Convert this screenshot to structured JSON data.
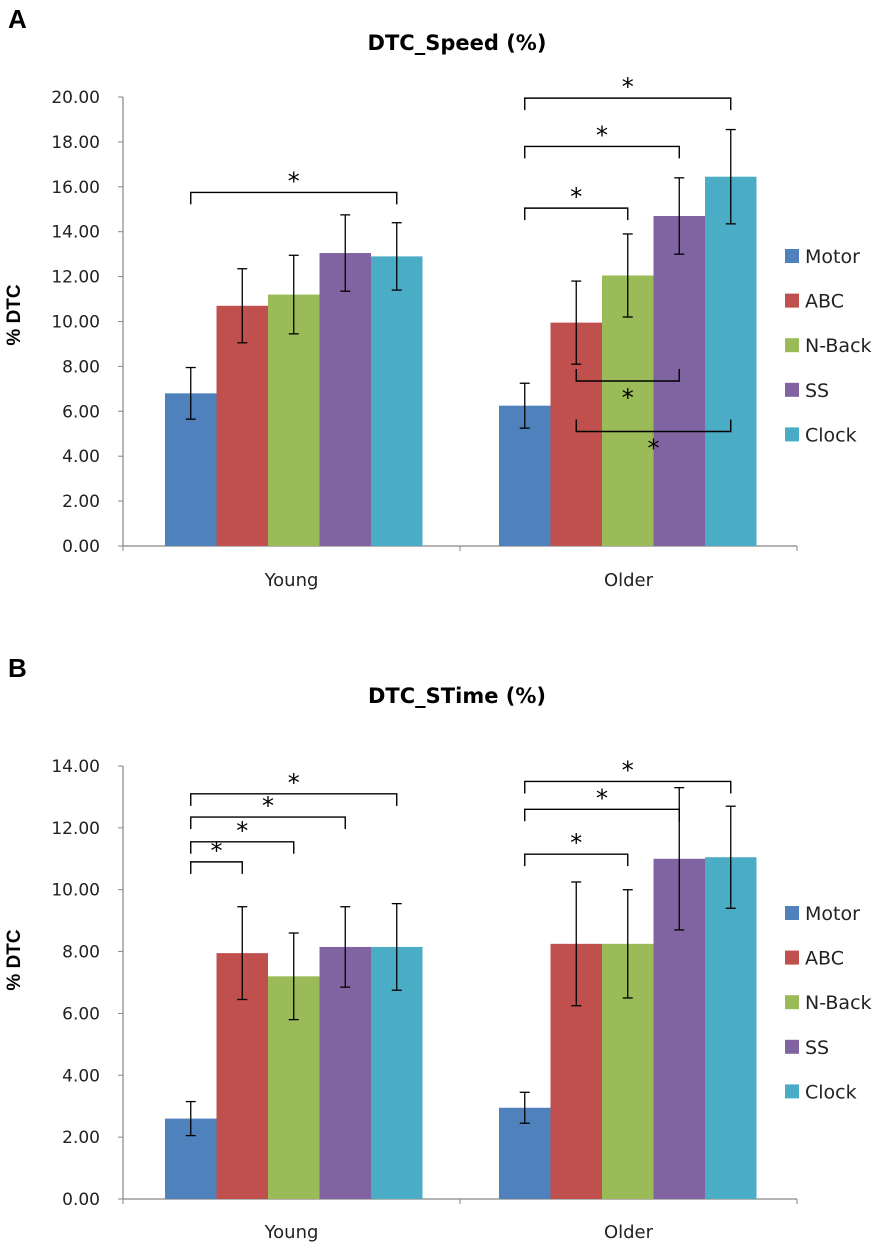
{
  "chart_data": [
    {
      "panel": "A",
      "type": "bar",
      "title": "DTC_Speed (%)",
      "ylabel": "% DTC",
      "xlabel": "",
      "ylim": [
        0,
        20
      ],
      "yticks": [
        "0.00",
        "2.00",
        "4.00",
        "6.00",
        "8.00",
        "10.00",
        "12.00",
        "14.00",
        "16.00",
        "18.00",
        "20.00"
      ],
      "categories": [
        "Young",
        "Older"
      ],
      "series": [
        {
          "name": "Motor",
          "color": "#4F81BD",
          "values": [
            6.8,
            6.25
          ],
          "errors": [
            1.15,
            1.0
          ]
        },
        {
          "name": "ABC",
          "color": "#C0504D",
          "values": [
            10.7,
            9.95
          ],
          "errors": [
            1.65,
            1.85
          ]
        },
        {
          "name": "N-Back",
          "color": "#9BBB59",
          "values": [
            11.2,
            12.05
          ],
          "errors": [
            1.75,
            1.85
          ]
        },
        {
          "name": "SS",
          "color": "#8064A2",
          "values": [
            13.05,
            14.7
          ],
          "errors": [
            1.7,
            1.7
          ]
        },
        {
          "name": "Clock",
          "color": "#4BACC6",
          "values": [
            12.9,
            16.45
          ],
          "errors": [
            1.5,
            2.1
          ]
        }
      ],
      "brackets": [
        {
          "category": 0,
          "from": 0,
          "to": 4,
          "y": 15.75,
          "dir": "down",
          "label": "*"
        },
        {
          "category": 1,
          "from": 0,
          "to": 2,
          "y": 15.05,
          "dir": "down",
          "label": "*"
        },
        {
          "category": 1,
          "from": 0,
          "to": 3,
          "y": 17.8,
          "dir": "down",
          "label": "*"
        },
        {
          "category": 1,
          "from": 0,
          "to": 4,
          "y": 19.95,
          "dir": "down",
          "label": "*"
        },
        {
          "category": 1,
          "from": 1,
          "to": 3,
          "y": 7.35,
          "dir": "up",
          "label": "*"
        },
        {
          "category": 1,
          "from": 1,
          "to": 4,
          "y": 5.1,
          "dir": "up",
          "label": "*"
        }
      ]
    },
    {
      "panel": "B",
      "type": "bar",
      "title": "DTC_STime (%)",
      "ylabel": "% DTC",
      "xlabel": "",
      "ylim": [
        0,
        14
      ],
      "yticks": [
        "0.00",
        "2.00",
        "4.00",
        "6.00",
        "8.00",
        "10.00",
        "12.00",
        "14.00"
      ],
      "categories": [
        "Young",
        "Older"
      ],
      "series": [
        {
          "name": "Motor",
          "color": "#4F81BD",
          "values": [
            2.6,
            2.95
          ],
          "errors": [
            0.55,
            0.5
          ]
        },
        {
          "name": "ABC",
          "color": "#C0504D",
          "values": [
            7.95,
            8.25
          ],
          "errors": [
            1.5,
            2.0
          ]
        },
        {
          "name": "N-Back",
          "color": "#9BBB59",
          "values": [
            7.2,
            8.25
          ],
          "errors": [
            1.4,
            1.75
          ]
        },
        {
          "name": "SS",
          "color": "#8064A2",
          "values": [
            8.15,
            11.0
          ],
          "errors": [
            1.3,
            2.3
          ]
        },
        {
          "name": "Clock",
          "color": "#4BACC6",
          "values": [
            8.15,
            11.05
          ],
          "errors": [
            1.4,
            1.65
          ]
        }
      ],
      "brackets": [
        {
          "category": 0,
          "from": 0,
          "to": 1,
          "y": 10.9,
          "dir": "down",
          "label": "*"
        },
        {
          "category": 0,
          "from": 0,
          "to": 2,
          "y": 11.55,
          "dir": "down",
          "label": "*"
        },
        {
          "category": 0,
          "from": 0,
          "to": 3,
          "y": 12.35,
          "dir": "down",
          "label": "*"
        },
        {
          "category": 0,
          "from": 0,
          "to": 4,
          "y": 13.1,
          "dir": "down",
          "label": "*"
        },
        {
          "category": 1,
          "from": 0,
          "to": 2,
          "y": 11.15,
          "dir": "down",
          "label": "*"
        },
        {
          "category": 1,
          "from": 0,
          "to": 3,
          "y": 12.6,
          "dir": "down",
          "label": "*"
        },
        {
          "category": 1,
          "from": 0,
          "to": 4,
          "y": 13.5,
          "dir": "down",
          "label": "*"
        }
      ]
    }
  ]
}
